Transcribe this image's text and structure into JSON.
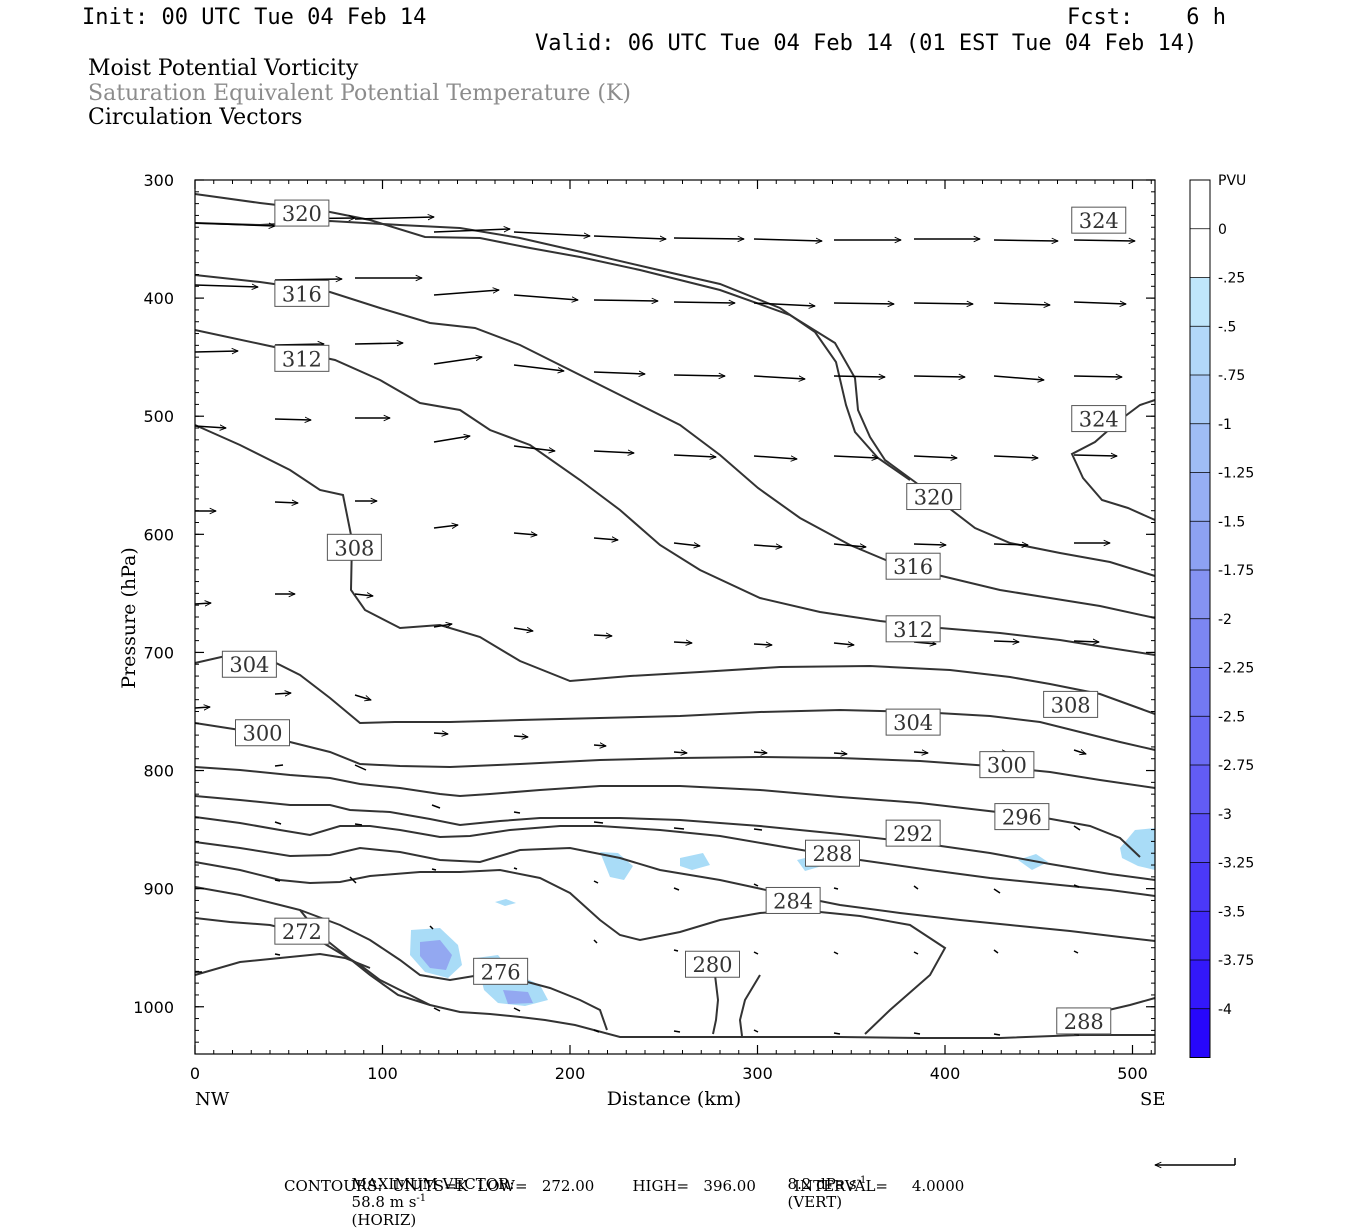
{
  "header": {
    "init": "Init: 00 UTC Tue 04 Feb 14",
    "fcst": "Fcst:    6 h",
    "valid": "Valid: 06 UTC Tue 04 Feb 14 (01 EST Tue 04 Feb 14)",
    "line1": "Moist Potential Vorticity",
    "line2": "Saturation Equivalent Potential Temperature (K)",
    "line3": "Circulation Vectors"
  },
  "chart_data": {
    "type": "contour",
    "xlabel": "Distance (km)",
    "ylabel": "Pressure (hPa)",
    "x_ticks": [
      0,
      100,
      200,
      300,
      400,
      500
    ],
    "y_ticks": [
      300,
      400,
      500,
      600,
      700,
      800,
      900,
      1000
    ],
    "xlim": [
      0,
      512
    ],
    "ylim": [
      300,
      1040
    ],
    "x_end_labels": {
      "left": "NW",
      "right": "SE"
    },
    "contour_labels": [
      {
        "text": "320",
        "x": 57,
        "p": 328
      },
      {
        "text": "324",
        "x": 482,
        "p": 334
      },
      {
        "text": "316",
        "x": 57,
        "p": 396
      },
      {
        "text": "312",
        "x": 57,
        "p": 451
      },
      {
        "text": "324",
        "x": 482,
        "p": 502
      },
      {
        "text": "320",
        "x": 394,
        "p": 568
      },
      {
        "text": "308",
        "x": 85,
        "p": 611
      },
      {
        "text": "316",
        "x": 383,
        "p": 627
      },
      {
        "text": "312",
        "x": 383,
        "p": 680
      },
      {
        "text": "304",
        "x": 29,
        "p": 710
      },
      {
        "text": "308",
        "x": 467,
        "p": 744
      },
      {
        "text": "304",
        "x": 383,
        "p": 759
      },
      {
        "text": "300",
        "x": 36,
        "p": 768
      },
      {
        "text": "300",
        "x": 433,
        "p": 795
      },
      {
        "text": "296",
        "x": 441,
        "p": 839
      },
      {
        "text": "292",
        "x": 383,
        "p": 853
      },
      {
        "text": "288",
        "x": 340,
        "p": 870
      },
      {
        "text": "284",
        "x": 319,
        "p": 910
      },
      {
        "text": "272",
        "x": 57,
        "p": 936
      },
      {
        "text": "280",
        "x": 276,
        "p": 964
      },
      {
        "text": "276",
        "x": 163,
        "p": 970
      },
      {
        "text": "288",
        "x": 474,
        "p": 1012
      }
    ],
    "colorbar": {
      "unit": "PVU",
      "ticks": [
        "0",
        "-.25",
        "-.5",
        "-.75",
        "-1",
        "-1.25",
        "-1.5",
        "-1.75",
        "-2",
        "-2.25",
        "-2.5",
        "-2.75",
        "-3",
        "-3.25",
        "-3.5",
        "-3.75",
        "-4"
      ],
      "colors": [
        "#ffffff",
        "#ffffff",
        "#bfe6fb",
        "#b2d8f9",
        "#a8caf6",
        "#9fbdf5",
        "#96aff4",
        "#8da2f3",
        "#8593f2",
        "#7c86f2",
        "#7379f3",
        "#6b6bf4",
        "#625cf5",
        "#574bf6",
        "#4b39f8",
        "#3f28f9",
        "#3318fa",
        "#2707fc"
      ]
    },
    "pv_region_color": "#a9dcf7",
    "pv_core_color": "#8f9ff0"
  },
  "footer": {
    "max_vector_label": "MAXIMUM VECTOR:",
    "max_horiz": "58.8 m s",
    "horiz_exp": "-1",
    "horiz_tag": "(HORIZ)",
    "max_vert": "8.2 dPa s",
    "vert_exp": "-1",
    "vert_tag": "(VERT)",
    "contours": "CONTOURS:  UNITS=K  LOW=   272.00        HIGH=   396.00        INTERVAL=     4.0000"
  }
}
